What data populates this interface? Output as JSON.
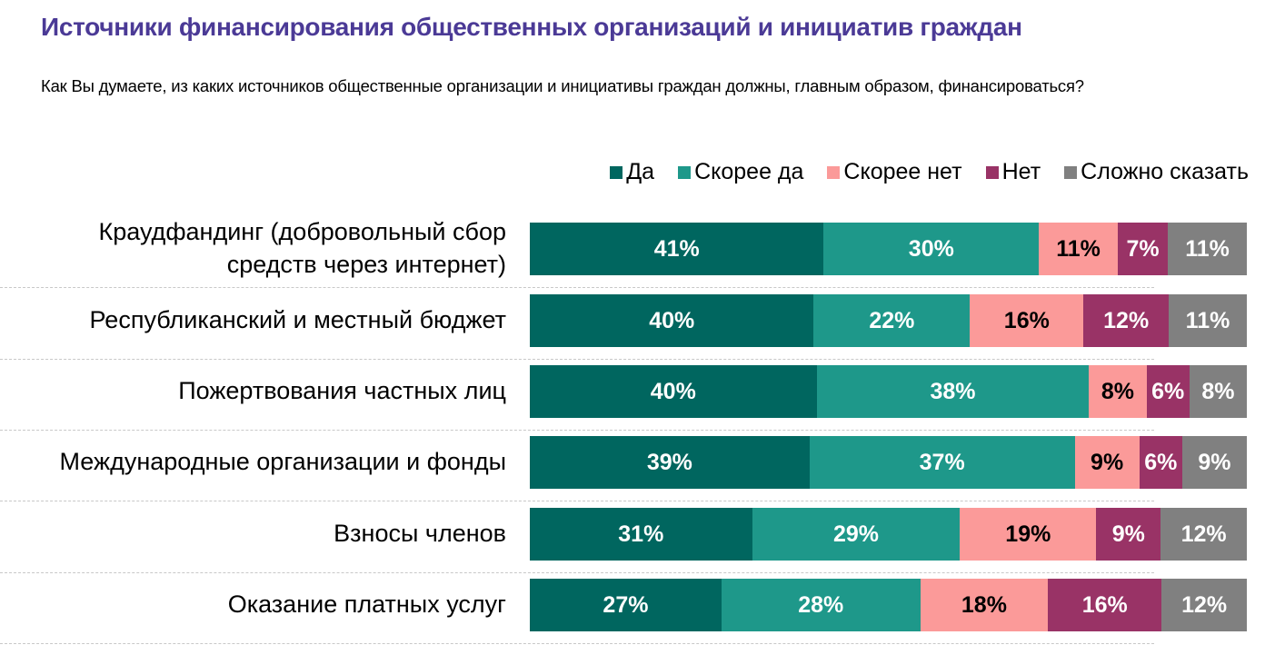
{
  "header": {
    "title": "Источники финансирования общественных организаций и инициатив граждан",
    "subtitle": "Как Вы думаете, из каких источников общественные организации и инициативы граждан должны, главным образом, финансироваться?"
  },
  "chart_data": {
    "type": "bar",
    "orientation": "horizontal",
    "stacked": true,
    "normalized": true,
    "title": "Источники финансирования общественных организаций и инициатив граждан",
    "subtitle": "Как Вы думаете, из каких источников общественные организации и инициативы граждан должны, главным образом, финансироваться?",
    "xlabel": "",
    "ylabel": "",
    "legend_position": "top-right",
    "grid": false,
    "categories": [
      "Краудфандинг (добровольный сбор средств через интернет)",
      "Республиканский и местный бюджет",
      "Пожертвования частных лиц",
      "Международные организации и фонды",
      "Взносы членов",
      "Оказание платных услуг"
    ],
    "category_lines": [
      [
        "Краудфандинг (добровольный сбор",
        "средств через интернет)"
      ],
      [
        "Республиканский и местный бюджет"
      ],
      [
        "Пожертвования частных лиц"
      ],
      [
        "Международные организации и фонды"
      ],
      [
        "Взносы членов"
      ],
      [
        "Оказание платных услуг"
      ]
    ],
    "series": [
      {
        "name": "Да",
        "color": "#00665F",
        "label_color": "#ffffff",
        "values": [
          41,
          40,
          40,
          39,
          31,
          27
        ]
      },
      {
        "name": "Скорее да",
        "color": "#1E988A",
        "label_color": "#ffffff",
        "values": [
          30,
          22,
          38,
          37,
          29,
          28
        ]
      },
      {
        "name": "Скорее нет",
        "color": "#FB9A99",
        "label_color": "#000000",
        "values": [
          11,
          16,
          8,
          9,
          19,
          18
        ]
      },
      {
        "name": "Нет",
        "color": "#993366",
        "label_color": "#ffffff",
        "values": [
          7,
          12,
          6,
          6,
          9,
          16
        ]
      },
      {
        "name": "Сложно сказать",
        "color": "#808080",
        "label_color": "#ffffff",
        "values": [
          11,
          11,
          8,
          9,
          12,
          12
        ]
      }
    ],
    "value_suffix": "%"
  }
}
